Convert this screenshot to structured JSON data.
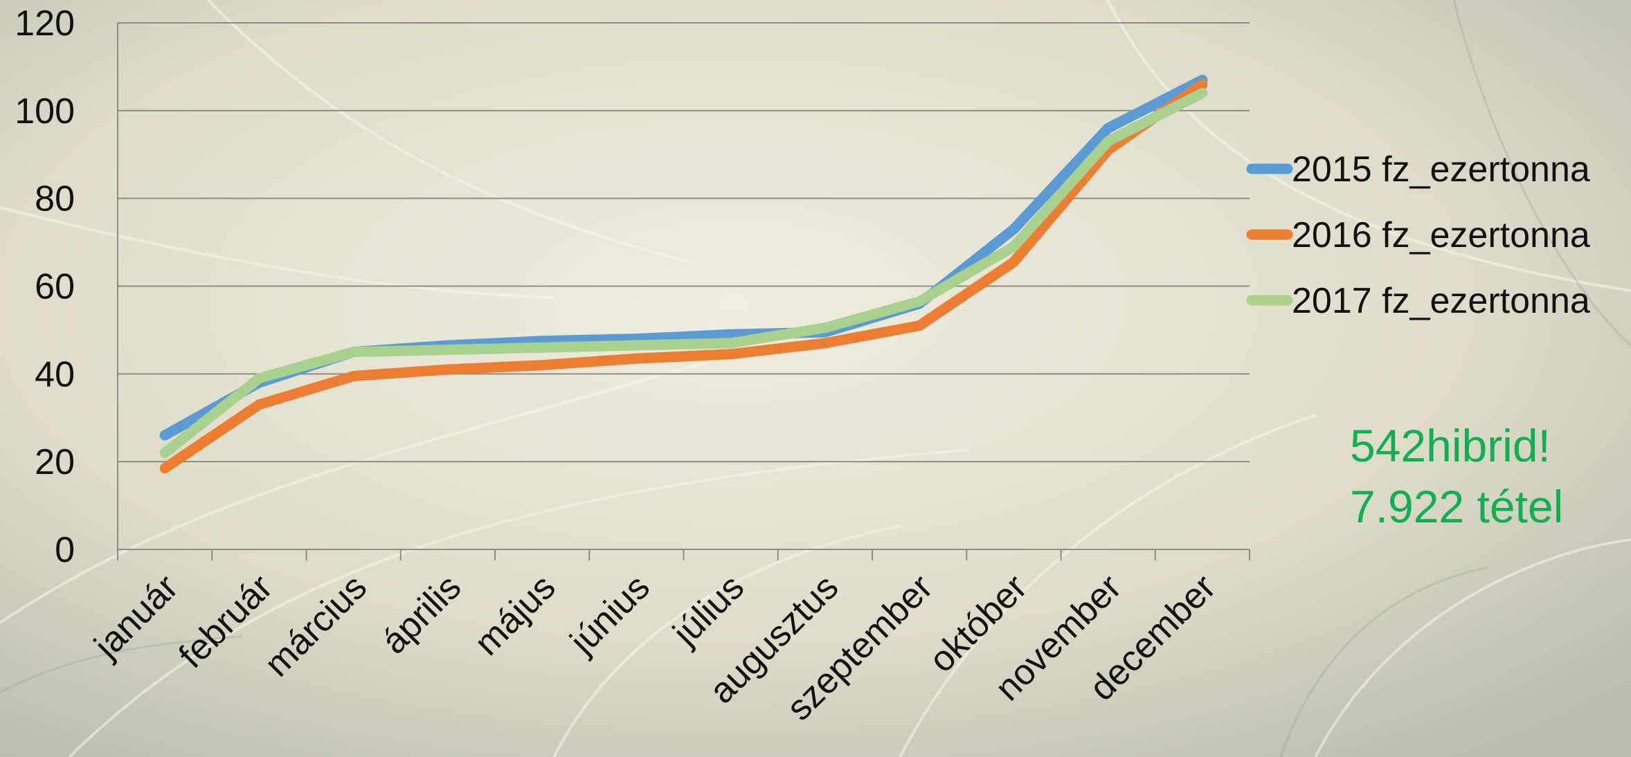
{
  "chart_data": {
    "type": "line",
    "categories": [
      "január",
      "február",
      "március",
      "április",
      "május",
      "június",
      "július",
      "augusztus",
      "szeptember",
      "október",
      "november",
      "december"
    ],
    "series": [
      {
        "name": "2015 fz_ezertonna",
        "color": "#5b9bd5",
        "values": [
          26,
          38,
          45,
          46.5,
          47.5,
          48,
          49,
          49.5,
          56,
          73,
          96,
          107
        ]
      },
      {
        "name": "2016 fz_ezertonna",
        "color": "#ed7d31",
        "values": [
          18.5,
          33,
          39.5,
          41,
          42,
          43.5,
          44.5,
          47,
          51,
          65.5,
          91,
          106
        ]
      },
      {
        "name": "2017 fz_ezertonna",
        "color": "#a9d18e",
        "values": [
          22,
          39,
          45,
          45.5,
          46,
          46.5,
          47,
          50.5,
          56.5,
          69,
          93,
          104
        ]
      }
    ],
    "ylim": [
      0,
      120
    ],
    "yticks": [
      0,
      20,
      40,
      60,
      80,
      100,
      120
    ],
    "grid": true,
    "legend_position": "right"
  },
  "annotation": {
    "line1": "542hibrid!",
    "line2": "7.922 tétel",
    "color": "#10b050"
  }
}
